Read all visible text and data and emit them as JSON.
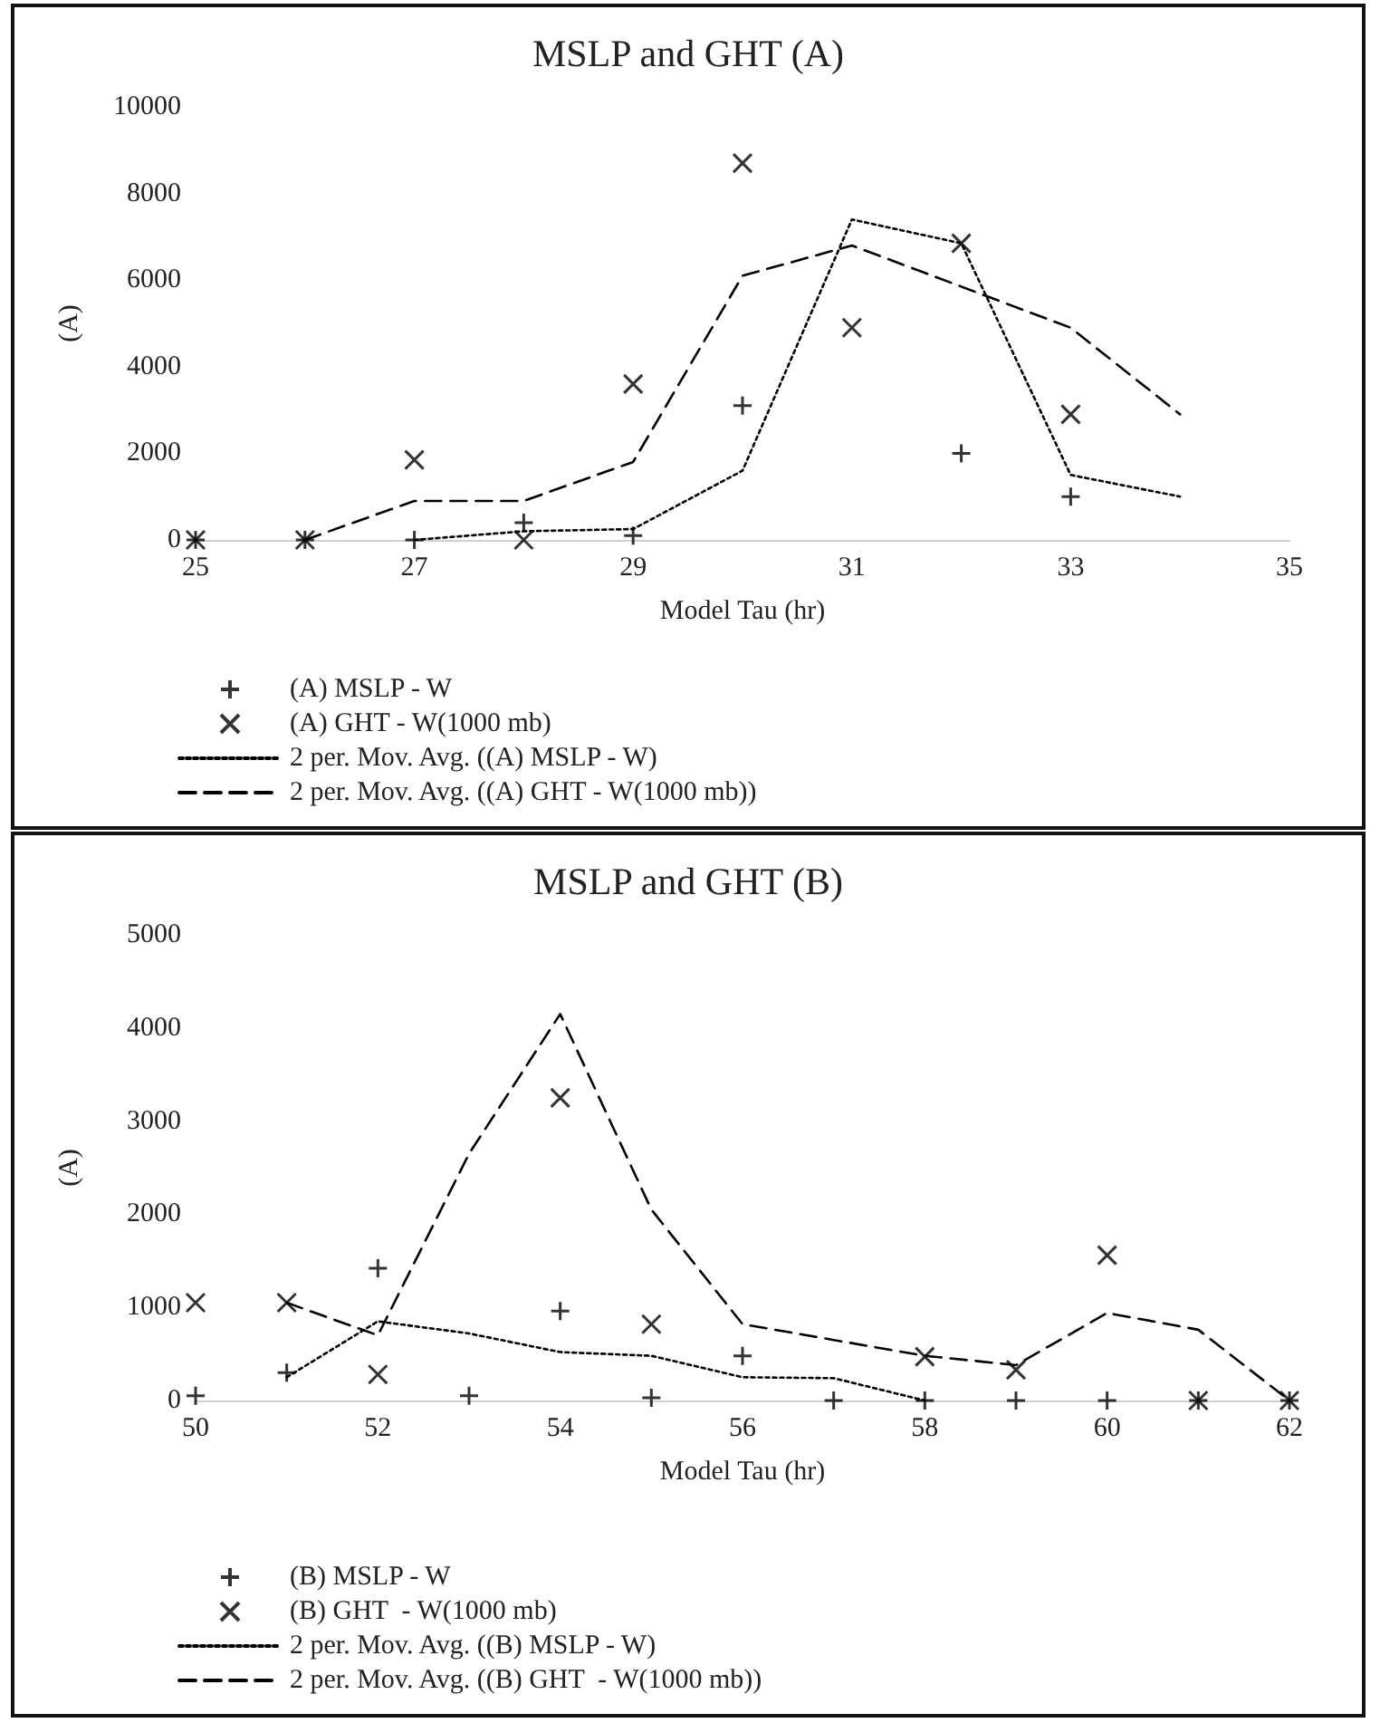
{
  "chart_data": [
    {
      "type": "scatter",
      "title": "MSLP and GHT (A)",
      "xlabel": "Model Tau (hr)",
      "ylabel": "(A)",
      "xlim": [
        25,
        35
      ],
      "xticks": [
        25,
        27,
        29,
        31,
        33,
        35
      ],
      "ylim": [
        0,
        10000
      ],
      "yticks": [
        0,
        2000,
        4000,
        6000,
        8000,
        10000
      ],
      "grid": false,
      "legend": "bottom left",
      "series": [
        {
          "name": "(A) MSLP - W",
          "color": "#000000",
          "marker": "plus",
          "x": [
            25,
            26,
            27,
            28,
            29,
            30,
            31,
            32,
            33
          ],
          "values": [
            0,
            0,
            0,
            400,
            100,
            3100,
            null,
            2000,
            1000
          ]
        },
        {
          "name": "(A) GHT - W(1000 mb)",
          "color": "#000000",
          "marker": "cross",
          "x": [
            25,
            26,
            27,
            28,
            29,
            30,
            31,
            32,
            33
          ],
          "values": [
            0,
            0,
            1850,
            0,
            3600,
            8700,
            4900,
            6850,
            2900
          ]
        },
        {
          "type": "line",
          "name": "2 per. Mov. Avg. ((A) MSLP - W)",
          "color": "#000000",
          "marker": "none",
          "line_style": "dotted",
          "x": [
            27,
            28,
            29,
            30,
            31,
            32,
            33,
            34
          ],
          "values": [
            0,
            200,
            250,
            1600,
            7400,
            6850,
            1500,
            1000
          ]
        },
        {
          "type": "line",
          "name": "2 per. Mov. Avg. ((A) GHT - W(1000 mb))",
          "color": "#000000",
          "marker": "none",
          "line_style": "dashed",
          "x": [
            26,
            27,
            28,
            29,
            30,
            31,
            32,
            33,
            34
          ],
          "values": [
            0,
            900,
            900,
            1800,
            6100,
            6800,
            5850,
            4900,
            2900
          ]
        }
      ]
    },
    {
      "type": "scatter",
      "title": "MSLP and GHT (B)",
      "xlabel": "Model Tau (hr)",
      "ylabel": "(A)",
      "xlim": [
        50,
        62
      ],
      "xticks": [
        50,
        52,
        54,
        56,
        58,
        60,
        62
      ],
      "ylim": [
        0,
        5000
      ],
      "yticks": [
        0,
        1000,
        2000,
        3000,
        4000,
        5000
      ],
      "grid": false,
      "legend": "bottom left",
      "series": [
        {
          "name": "(B) MSLP - W",
          "color": "#000000",
          "marker": "plus",
          "x": [
            50,
            51,
            52,
            53,
            54,
            55,
            56,
            57,
            58,
            59,
            60,
            61,
            62
          ],
          "values": [
            50,
            300,
            1420,
            50,
            960,
            30,
            480,
            0,
            0,
            0,
            0,
            0,
            0
          ]
        },
        {
          "name": "(B) GHT  - W(1000 mb)",
          "color": "#000000",
          "marker": "cross",
          "x": [
            50,
            51,
            52,
            53,
            54,
            55,
            56,
            57,
            58,
            59,
            60,
            61,
            62
          ],
          "values": [
            1050,
            1050,
            280,
            null,
            3250,
            820,
            null,
            null,
            470,
            330,
            1560,
            0,
            0
          ]
        },
        {
          "type": "line",
          "name": "2 per. Mov. Avg. ((B) MSLP - W)",
          "color": "#000000",
          "marker": "none",
          "line_style": "dotted",
          "x": [
            51,
            52,
            53,
            54,
            55,
            56,
            57,
            58
          ],
          "values": [
            250,
            850,
            720,
            520,
            480,
            250,
            240,
            0
          ]
        },
        {
          "type": "line",
          "name": "2 per. Mov. Avg. ((B) GHT  - W(1000 mb))",
          "color": "#000000",
          "marker": "none",
          "line_style": "dashed",
          "x": [
            51,
            52,
            53,
            54,
            55,
            56,
            57,
            58,
            59,
            60,
            61,
            62
          ],
          "values": [
            1050,
            700,
            2650,
            4150,
            2050,
            820,
            650,
            480,
            380,
            940,
            760,
            0
          ]
        }
      ]
    }
  ]
}
